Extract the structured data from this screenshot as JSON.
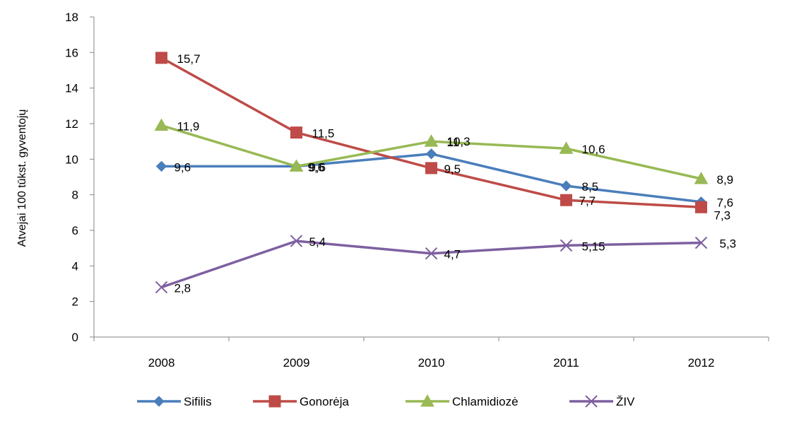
{
  "chart_data": {
    "type": "line",
    "title": "",
    "xlabel": "",
    "ylabel": "Atvejai 100 tūkst. gyventojų",
    "categories": [
      "2008",
      "2009",
      "2010",
      "2011",
      "2012"
    ],
    "ylim": [
      0,
      18
    ],
    "yticks": [
      0,
      2,
      4,
      6,
      8,
      10,
      12,
      14,
      16,
      18
    ],
    "ytick_labels": [
      "0",
      "2",
      "4",
      "6",
      "8",
      "10",
      "12",
      "14",
      "16",
      "18"
    ],
    "grid": false,
    "legend_position": "bottom",
    "series": [
      {
        "name": "Sifilis",
        "values": [
          9.6,
          9.6,
          10.3,
          8.5,
          7.6
        ],
        "labels": [
          "9,6",
          "9,6",
          "10,3",
          "8,5",
          "7,6"
        ],
        "color": "#4a7ebb",
        "marker": "diamond"
      },
      {
        "name": "Gonorėja",
        "values": [
          15.7,
          11.5,
          9.5,
          7.7,
          7.3
        ],
        "labels": [
          "15,7",
          "11,5",
          "9,5",
          "7,7",
          "7,3"
        ],
        "color": "#be4b48",
        "marker": "square"
      },
      {
        "name": "Chlamidiozė",
        "values": [
          11.9,
          9.6,
          11,
          10.6,
          8.9
        ],
        "labels": [
          "11,9",
          "9,6",
          "11",
          "10,6",
          "8,9"
        ],
        "color": "#98b954",
        "marker": "triangle"
      },
      {
        "name": "ŽIV",
        "values": [
          2.8,
          5.4,
          4.7,
          5.15,
          5.3
        ],
        "labels": [
          "2,8",
          "5,4",
          "4,7",
          "5,15",
          "5,3"
        ],
        "color": "#7d60a0",
        "marker": "x"
      }
    ]
  }
}
